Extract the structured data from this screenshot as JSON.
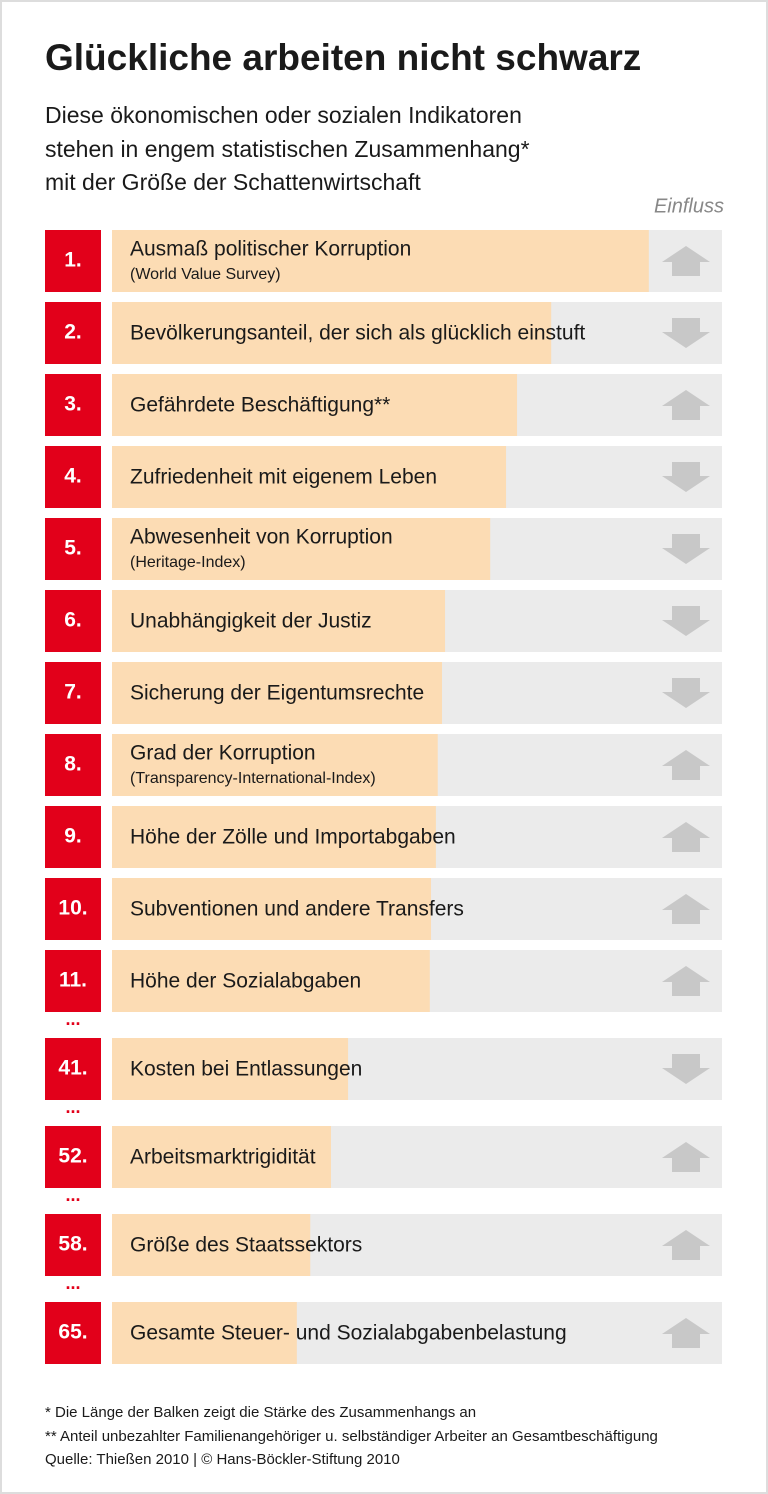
{
  "chart_data": {
    "type": "bar",
    "title": "Glückliche arbeiten nicht schwarz",
    "subtitle": [
      "Diese ökonomischen oder sozialen Indikatoren",
      "stehen in engem statistischen Zusammenhang*",
      "mit der Größe der Schattenwirtschaft"
    ],
    "column_label": "Einfluss",
    "ranks": [
      "1.",
      "2.",
      "3.",
      "4.",
      "5.",
      "6.",
      "7.",
      "8.",
      "9.",
      "10.",
      "11.",
      "41.",
      "52.",
      "58.",
      "65."
    ],
    "categories": [
      "Ausmaß politischer Korruption",
      "Bevölkerungsanteil, der sich als glücklich einstuft",
      "Gefährdete Beschäftigung**",
      "Zufriedenheit mit eigenem Leben",
      "Abwesenheit von Korruption",
      "Unabhängigkeit der Justiz",
      "Sicherung der Eigentumsrechte",
      "Grad der Korruption",
      "Höhe der Zölle und Importabgaben",
      "Subventionen und andere Transfers",
      "Höhe der Sozialabgaben",
      "Kosten bei Entlassungen",
      "Arbeitsmarktrigidität",
      "Größe des Staatssektors",
      "Gesamte Steuer- und Sozialabgabenbelastung"
    ],
    "notes": [
      "(World Value Survey)",
      null,
      null,
      null,
      "(Heritage-Index)",
      null,
      null,
      "(Transparency-International-Index)",
      null,
      null,
      null,
      null,
      null,
      null,
      null
    ],
    "values": [
      88,
      72,
      66.4,
      64.6,
      62,
      54.6,
      54.1,
      53.4,
      53.1,
      52.3,
      52.1,
      38.7,
      35.9,
      32.5,
      30.3
    ],
    "directions": [
      "up",
      "down",
      "up",
      "down",
      "down",
      "down",
      "down",
      "up",
      "up",
      "up",
      "up",
      "down",
      "up",
      "up",
      "up"
    ],
    "breaks": [
      false,
      false,
      false,
      false,
      false,
      false,
      false,
      false,
      false,
      false,
      false,
      true,
      true,
      true,
      true
    ],
    "break_marker": "...",
    "xlim": [
      0,
      100
    ],
    "bar_color": "#fcdcb4",
    "track_color": "#ebebeb",
    "rank_color": "#e2001a",
    "arrow_color": "#c8c8c8",
    "footnotes": [
      "*   Die Länge der Balken zeigt die Stärke des Zusammenhangs an",
      "** Anteil unbezahlter Familienangehöriger u. selbständiger Arbeiter an Gesamtbeschäftigung",
      "Quelle: Thießen 2010 | © Hans-Böckler-Stiftung 2010"
    ]
  }
}
